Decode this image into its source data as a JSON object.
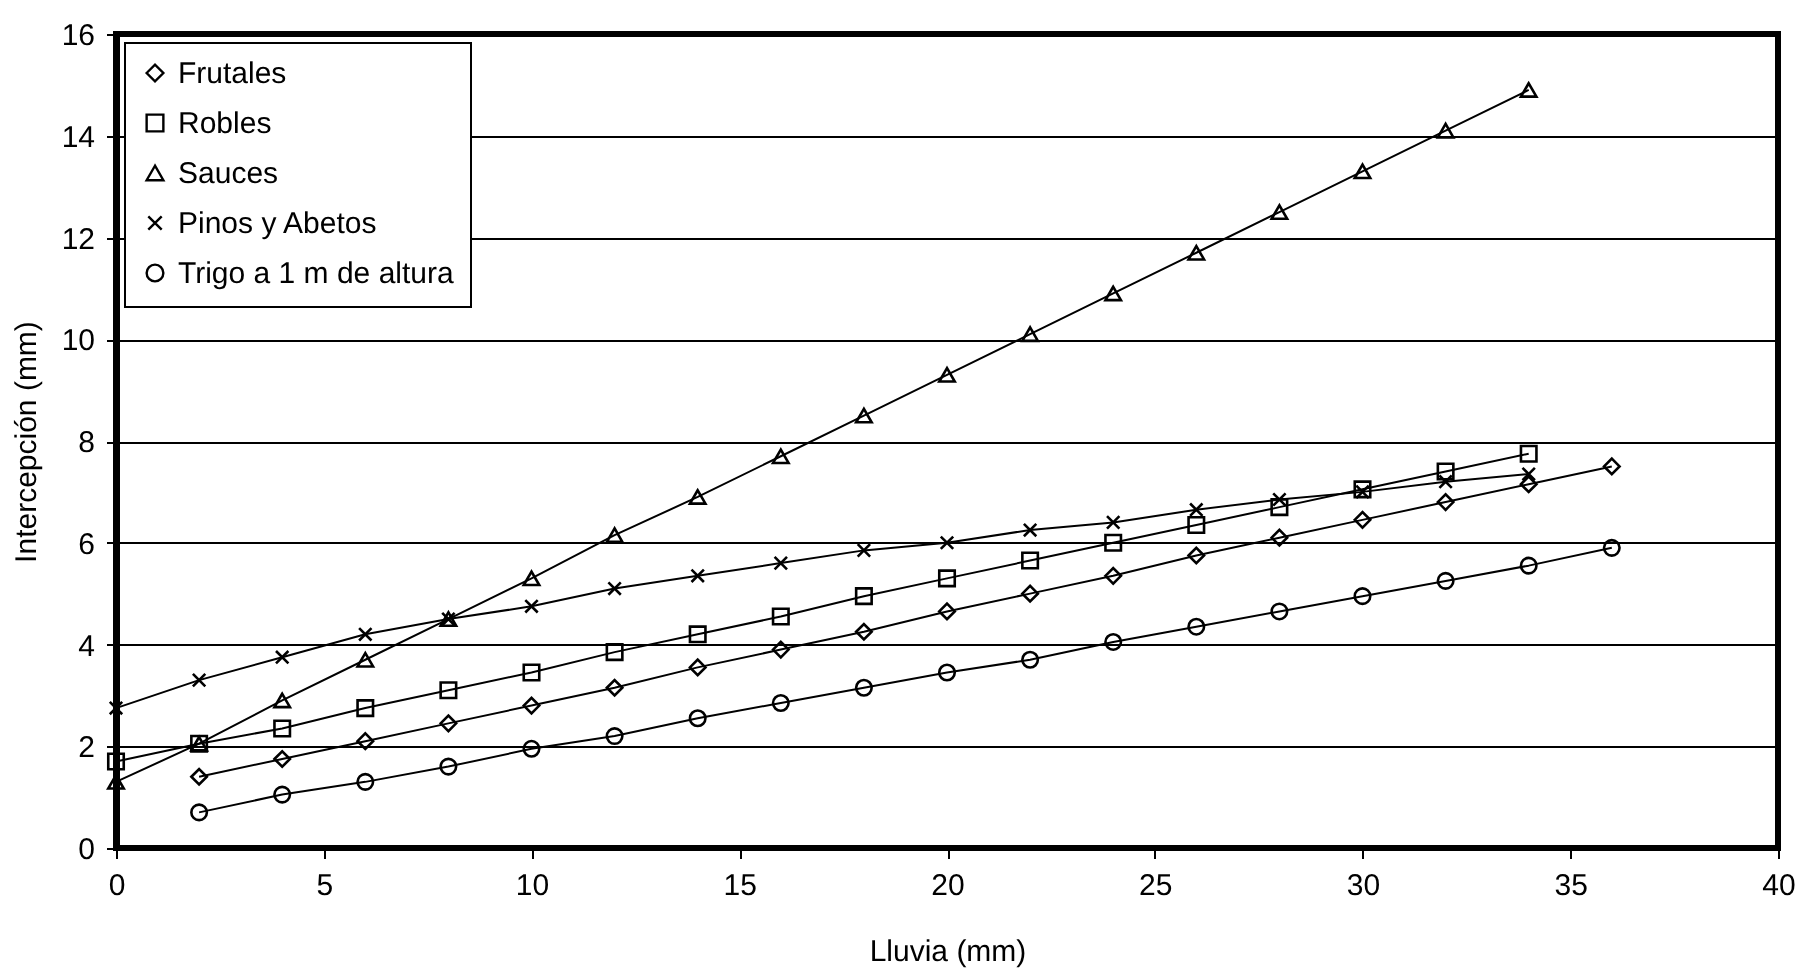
{
  "chart_data": {
    "type": "line",
    "xlabel": "Lluvia (mm)",
    "ylabel": "Intercepción (mm)",
    "xlim": [
      0,
      40
    ],
    "ylim": [
      0,
      16
    ],
    "xticks": [
      0,
      5,
      10,
      15,
      20,
      25,
      30,
      35,
      40
    ],
    "yticks": [
      0,
      2,
      4,
      6,
      8,
      10,
      12,
      14,
      16
    ],
    "grid": "y",
    "legend": "top left",
    "line_style": "solid",
    "series": [
      {
        "name": "Frutales",
        "color": "#000000",
        "marker": "diamond",
        "x": [
          2,
          4,
          6,
          8,
          10,
          12,
          14,
          16,
          18,
          20,
          22,
          24,
          26,
          28,
          30,
          32,
          34,
          36
        ],
        "values": [
          1.4,
          1.75,
          2.1,
          2.45,
          2.8,
          3.15,
          3.55,
          3.9,
          4.25,
          4.65,
          5.0,
          5.35,
          5.75,
          6.1,
          6.45,
          6.8,
          7.15,
          7.5
        ]
      },
      {
        "name": "Robles",
        "color": "#000000",
        "marker": "square",
        "x": [
          0,
          2,
          4,
          6,
          8,
          10,
          12,
          14,
          16,
          18,
          20,
          22,
          24,
          26,
          28,
          30,
          32,
          34
        ],
        "values": [
          1.7,
          2.05,
          2.35,
          2.75,
          3.1,
          3.45,
          3.85,
          4.2,
          4.55,
          4.95,
          5.3,
          5.65,
          6.0,
          6.35,
          6.7,
          7.05,
          7.4,
          7.75
        ]
      },
      {
        "name": "Sauces",
        "color": "#000000",
        "marker": "triangle",
        "x": [
          0,
          2,
          4,
          6,
          8,
          10,
          12,
          14,
          16,
          18,
          20,
          22,
          24,
          26,
          28,
          30,
          32,
          34
        ],
        "values": [
          1.3,
          2.05,
          2.9,
          3.7,
          4.5,
          5.3,
          6.15,
          6.9,
          7.7,
          8.5,
          9.3,
          10.1,
          10.9,
          11.7,
          12.5,
          13.3,
          14.1,
          14.9
        ]
      },
      {
        "name": "Pinos y Abetos",
        "color": "#000000",
        "marker": "cross",
        "x": [
          0,
          2,
          4,
          6,
          8,
          10,
          12,
          14,
          16,
          18,
          20,
          22,
          24,
          26,
          28,
          30,
          32,
          34
        ],
        "values": [
          2.75,
          3.3,
          3.75,
          4.2,
          4.5,
          4.75,
          5.1,
          5.35,
          5.6,
          5.85,
          6.0,
          6.25,
          6.4,
          6.65,
          6.85,
          7.0,
          7.2,
          7.35
        ]
      },
      {
        "name": "Trigo a 1 m de altura",
        "color": "#000000",
        "marker": "circle",
        "x": [
          2,
          4,
          6,
          8,
          10,
          12,
          14,
          16,
          18,
          20,
          22,
          24,
          26,
          28,
          30,
          32,
          34,
          36
        ],
        "values": [
          0.7,
          1.05,
          1.3,
          1.6,
          1.95,
          2.2,
          2.55,
          2.85,
          3.15,
          3.45,
          3.7,
          4.05,
          4.35,
          4.65,
          4.95,
          5.25,
          5.55,
          5.9
        ]
      }
    ]
  }
}
